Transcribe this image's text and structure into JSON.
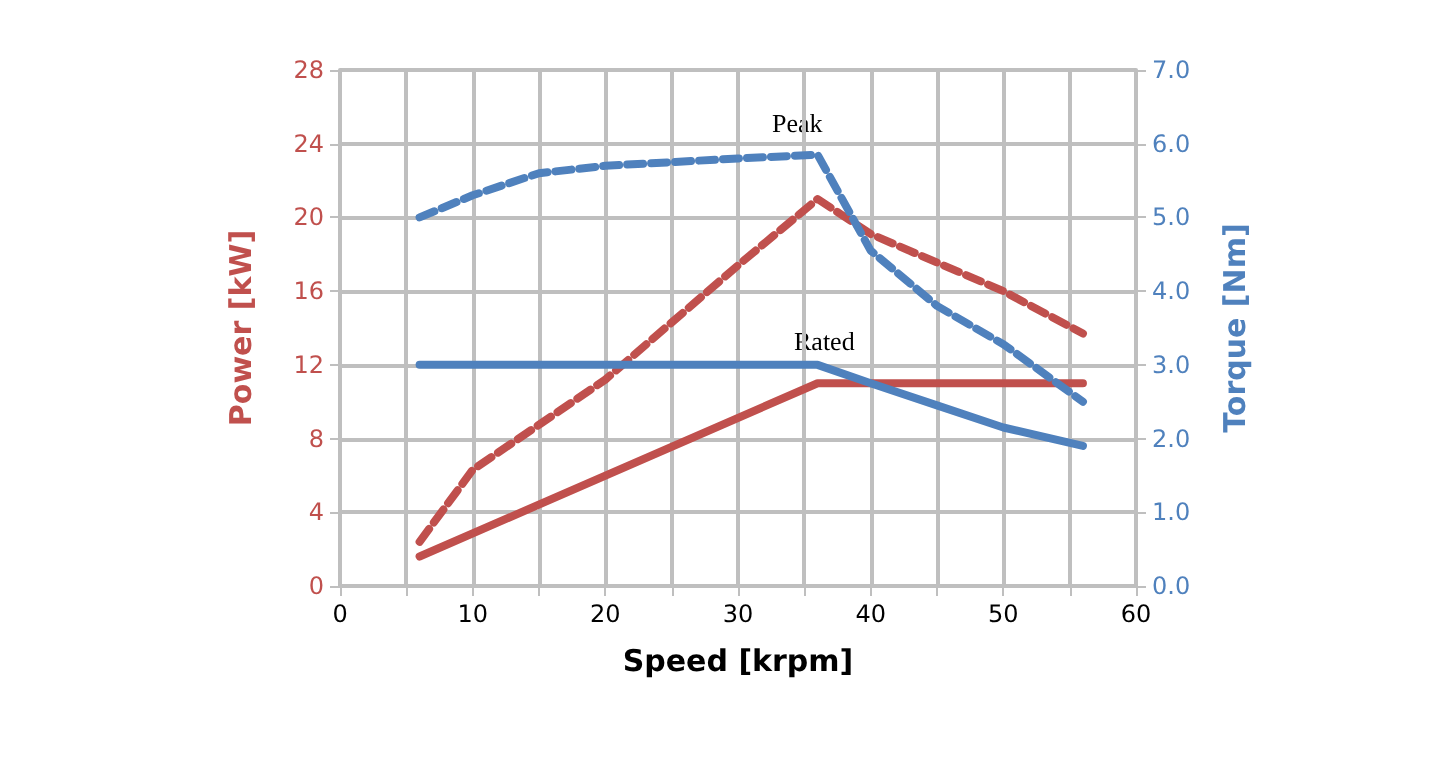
{
  "chart_data": {
    "type": "line",
    "xlabel": "Speed [krpm]",
    "ylabel": "Power [kW]",
    "y2label": "Torque [Nm]",
    "xlim": [
      0,
      60
    ],
    "xticks": [
      0,
      {
        "value": 5,
        "label": null
      },
      10,
      {
        "value": 15,
        "label": null
      },
      20,
      {
        "value": 25,
        "label": null
      },
      30,
      {
        "value": 35,
        "label": null
      },
      40,
      {
        "value": 45,
        "label": null
      },
      50,
      {
        "value": 55,
        "label": null
      },
      60
    ],
    "ylim": [
      0,
      28
    ],
    "yticks": [
      0,
      4,
      8,
      12,
      16,
      20,
      24,
      28
    ],
    "y2lim": [
      0,
      7
    ],
    "y2ticks": [
      {
        "value": 0,
        "label": "0.0"
      },
      {
        "value": 1,
        "label": "1.0"
      },
      {
        "value": 2,
        "label": "2.0"
      },
      {
        "value": 3,
        "label": "3.0"
      },
      {
        "value": 4,
        "label": "4.0"
      },
      {
        "value": 5,
        "label": "5.0"
      },
      {
        "value": 6,
        "label": "6.0"
      },
      {
        "value": 7,
        "label": "7.0"
      }
    ],
    "grid": true,
    "marker": "none",
    "series": [
      {
        "color": "#c0504d",
        "line_style": "solid",
        "x": [
          6,
          36,
          56
        ],
        "values": [
          1.6,
          11,
          11
        ]
      },
      {
        "color": "#c0504d",
        "line_style": "dashed",
        "x": [
          6,
          10,
          20,
          30,
          36,
          40,
          50,
          56
        ],
        "values": [
          2.4,
          6.3,
          11.2,
          17.4,
          21,
          19.1,
          16,
          13.7
        ]
      },
      {
        "color": "#4f81bd",
        "line_style": "solid",
        "axis": "y2",
        "x": [
          6,
          36,
          40,
          45,
          50,
          56
        ],
        "values": [
          3,
          3,
          2.75,
          2.45,
          2.15,
          1.9
        ]
      },
      {
        "color": "#4f81bd",
        "line_style": "dashed",
        "axis": "y2",
        "x": [
          6,
          10,
          15,
          20,
          25,
          30,
          36,
          40,
          45,
          50,
          56
        ],
        "values": [
          5,
          5.3,
          5.6,
          5.7,
          5.75,
          5.8,
          5.85,
          4.55,
          3.8,
          3.28,
          2.5
        ]
      }
    ],
    "annotations": [
      "Peak",
      "Rated"
    ]
  }
}
